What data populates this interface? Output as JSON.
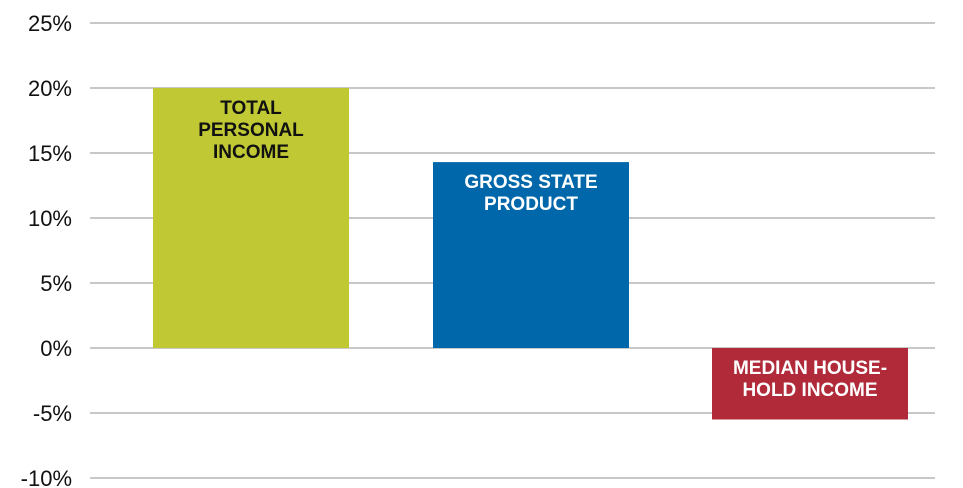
{
  "chart_data": {
    "type": "bar",
    "title": "",
    "xlabel": "",
    "ylabel": "",
    "ylim": [
      -10,
      25
    ],
    "yticks": [
      25,
      20,
      15,
      10,
      5,
      0,
      -5,
      -10
    ],
    "ytick_labels": [
      "25%",
      "20%",
      "15%",
      "10%",
      "5%",
      "0%",
      "-5%",
      "-10%"
    ],
    "grid": true,
    "legend": "none",
    "categories": [
      "TOTAL PERSONAL INCOME",
      "GROSS STATE PRODUCT",
      "MEDIAN HOUSEHOLD INCOME"
    ],
    "values": [
      20,
      14.3,
      -5.5
    ],
    "bar_label_lines": [
      [
        "TOTAL",
        "PERSONAL",
        "INCOME"
      ],
      [
        "GROSS STATE",
        "PRODUCT"
      ],
      [
        "MEDIAN HOUSE-",
        "HOLD INCOME"
      ]
    ],
    "colors": [
      "#c0c833",
      "#0068aa",
      "#b02a3a"
    ],
    "label_colors": [
      "#111111",
      "#ffffff",
      "#ffffff"
    ],
    "grid_color": "#c8c8c8"
  }
}
